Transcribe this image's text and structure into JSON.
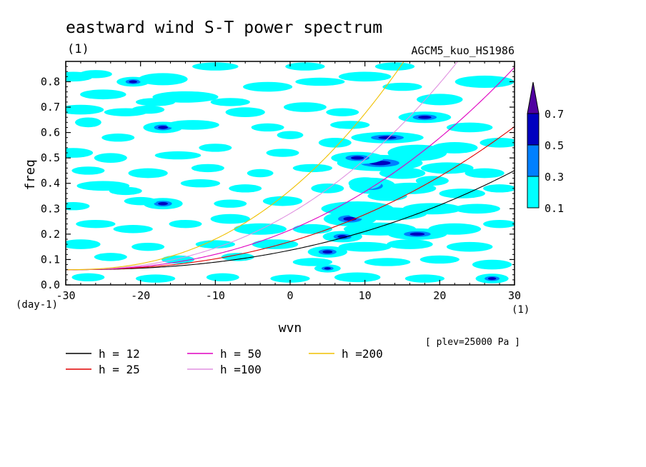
{
  "chart_data": {
    "type": "contour",
    "title": "eastward wind S-T power spectrum",
    "subtitle": "(1)",
    "model_label": "AGCM5_kuo_HS1986",
    "xlabel": "wvn",
    "ylabel": "freq",
    "x_unit": "(1)",
    "y_unit": "(day-1)",
    "xlim": [
      -30,
      30
    ],
    "ylim": [
      0,
      0.88
    ],
    "x_ticks": [
      "-30",
      "-20",
      "-10",
      "0",
      "10",
      "20",
      "30"
    ],
    "y_ticks": [
      "0.0",
      "0.1",
      "0.2",
      "0.3",
      "0.4",
      "0.5",
      "0.6",
      "0.7",
      "0.8"
    ],
    "plev_note": "[ plev=25000 Pa ]",
    "colorbar": {
      "levels": [
        "0.1",
        "0.3",
        "0.5",
        "0.7"
      ],
      "colors": [
        "#00ffff",
        "#0080ff",
        "#0000c0",
        "#5000a0"
      ]
    },
    "dispersion_curves": [
      {
        "label": "h = 12",
        "h": 12,
        "color": "#000000"
      },
      {
        "label": "h = 25",
        "h": 25,
        "color": "#e00000"
      },
      {
        "label": "h = 50",
        "h": 50,
        "color": "#e000c0"
      },
      {
        "label": "h =100",
        "h": 100,
        "color": "#e090e0"
      },
      {
        "label": "h =200",
        "h": 200,
        "color": "#f0c000"
      }
    ],
    "blobs": [
      [
        -29,
        0.82,
        1.2,
        0.012,
        1
      ],
      [
        -26,
        0.83,
        1.0,
        0.01,
        1
      ],
      [
        -21,
        0.8,
        1.0,
        0.012,
        2
      ],
      [
        -17,
        0.81,
        1.5,
        0.015,
        1
      ],
      [
        -25,
        0.75,
        1.4,
        0.012,
        1
      ],
      [
        -18,
        0.72,
        1.2,
        0.01,
        1
      ],
      [
        -14,
        0.74,
        2.0,
        0.014,
        1
      ],
      [
        -8,
        0.72,
        1.2,
        0.01,
        1
      ],
      [
        -3,
        0.78,
        1.5,
        0.012,
        1
      ],
      [
        4,
        0.8,
        1.5,
        0.01,
        1
      ],
      [
        10,
        0.82,
        1.6,
        0.012,
        1
      ],
      [
        15,
        0.78,
        1.2,
        0.01,
        1
      ],
      [
        -28,
        0.69,
        1.4,
        0.012,
        1
      ],
      [
        -22,
        0.68,
        1.3,
        0.01,
        1
      ],
      [
        -19,
        0.69,
        1.0,
        0.01,
        1
      ],
      [
        -6,
        0.68,
        1.2,
        0.012,
        1
      ],
      [
        2,
        0.7,
        1.3,
        0.012,
        1
      ],
      [
        7,
        0.68,
        1.0,
        0.01,
        1
      ],
      [
        20,
        0.73,
        1.4,
        0.014,
        1
      ],
      [
        26,
        0.8,
        1.8,
        0.015,
        1
      ],
      [
        -27,
        0.64,
        0.8,
        0.012,
        1
      ],
      [
        -17,
        0.62,
        1.2,
        0.014,
        2
      ],
      [
        -13,
        0.63,
        1.6,
        0.012,
        1
      ],
      [
        -3,
        0.62,
        1.0,
        0.01,
        1
      ],
      [
        8,
        0.63,
        1.2,
        0.01,
        1
      ],
      [
        18,
        0.66,
        1.6,
        0.014,
        2
      ],
      [
        24,
        0.62,
        1.4,
        0.012,
        1
      ],
      [
        13,
        0.58,
        2.2,
        0.014,
        2
      ],
      [
        -29,
        0.52,
        1.2,
        0.012,
        1
      ],
      [
        -24,
        0.5,
        1.0,
        0.012,
        1
      ],
      [
        -15,
        0.51,
        1.4,
        0.01,
        1
      ],
      [
        -10,
        0.54,
        1.0,
        0.01,
        1
      ],
      [
        -1,
        0.52,
        1.0,
        0.01,
        1
      ],
      [
        6,
        0.56,
        1.0,
        0.012,
        1
      ],
      [
        17,
        0.52,
        1.8,
        0.02,
        1
      ],
      [
        22,
        0.54,
        1.4,
        0.014,
        1
      ],
      [
        28,
        0.56,
        1.2,
        0.012,
        1
      ],
      [
        12,
        0.48,
        2.6,
        0.02,
        2
      ],
      [
        9,
        0.5,
        1.6,
        0.015,
        2
      ],
      [
        -19,
        0.44,
        1.2,
        0.012,
        1
      ],
      [
        -27,
        0.45,
        1.0,
        0.01,
        1
      ],
      [
        -11,
        0.46,
        1.0,
        0.01,
        1
      ],
      [
        -4,
        0.44,
        0.8,
        0.01,
        1
      ],
      [
        3,
        0.46,
        1.2,
        0.01,
        1
      ],
      [
        15,
        0.44,
        1.4,
        0.014,
        1
      ],
      [
        21,
        0.46,
        1.6,
        0.014,
        1
      ],
      [
        26,
        0.44,
        1.2,
        0.012,
        1
      ],
      [
        11,
        0.39,
        1.4,
        0.02,
        2
      ],
      [
        -25,
        0.39,
        1.6,
        0.012,
        1
      ],
      [
        -22,
        0.37,
        1.0,
        0.01,
        1
      ],
      [
        -12,
        0.4,
        1.2,
        0.01,
        1
      ],
      [
        -6,
        0.38,
        1.0,
        0.01,
        1
      ],
      [
        5,
        0.38,
        1.0,
        0.012,
        1
      ],
      [
        16,
        0.38,
        1.6,
        0.014,
        1
      ],
      [
        23,
        0.36,
        1.4,
        0.012,
        1
      ],
      [
        28,
        0.38,
        1.0,
        0.01,
        1
      ],
      [
        -29,
        0.31,
        1.0,
        0.01,
        1
      ],
      [
        -17,
        0.32,
        1.2,
        0.014,
        2
      ],
      [
        -20,
        0.33,
        1.0,
        0.01,
        1
      ],
      [
        -8,
        0.32,
        1.0,
        0.01,
        1
      ],
      [
        -1,
        0.33,
        1.2,
        0.012,
        1
      ],
      [
        9,
        0.3,
        2.2,
        0.018,
        1
      ],
      [
        8,
        0.26,
        1.6,
        0.018,
        2
      ],
      [
        13,
        0.28,
        2.4,
        0.016,
        1
      ],
      [
        19,
        0.3,
        1.8,
        0.014,
        1
      ],
      [
        25,
        0.3,
        1.4,
        0.012,
        1
      ],
      [
        -26,
        0.24,
        1.2,
        0.01,
        1
      ],
      [
        -21,
        0.22,
        1.2,
        0.01,
        1
      ],
      [
        -14,
        0.24,
        1.0,
        0.01,
        1
      ],
      [
        -4,
        0.22,
        1.6,
        0.014,
        1
      ],
      [
        3,
        0.22,
        1.2,
        0.012,
        1
      ],
      [
        12,
        0.22,
        2.2,
        0.016,
        1
      ],
      [
        17,
        0.2,
        1.8,
        0.014,
        2
      ],
      [
        22,
        0.22,
        1.6,
        0.014,
        1
      ],
      [
        28,
        0.24,
        1.0,
        0.01,
        1
      ],
      [
        7,
        0.19,
        1.2,
        0.014,
        2
      ],
      [
        -28,
        0.16,
        1.2,
        0.012,
        1
      ],
      [
        -19,
        0.15,
        1.0,
        0.01,
        1
      ],
      [
        -10,
        0.16,
        1.2,
        0.01,
        1
      ],
      [
        -2,
        0.16,
        1.4,
        0.012,
        1
      ],
      [
        5,
        0.13,
        1.2,
        0.014,
        2
      ],
      [
        10,
        0.15,
        1.6,
        0.012,
        1
      ],
      [
        16,
        0.16,
        1.4,
        0.012,
        1
      ],
      [
        24,
        0.15,
        1.4,
        0.012,
        1
      ],
      [
        -24,
        0.11,
        1.0,
        0.01,
        1
      ],
      [
        -15,
        0.1,
        1.0,
        0.01,
        1
      ],
      [
        -7,
        0.11,
        1.0,
        0.01,
        1
      ],
      [
        3,
        0.09,
        1.2,
        0.01,
        1
      ],
      [
        13,
        0.09,
        1.4,
        0.01,
        1
      ],
      [
        20,
        0.1,
        1.2,
        0.01,
        1
      ],
      [
        27,
        0.08,
        1.2,
        0.012,
        1
      ],
      [
        5,
        0.065,
        0.8,
        0.01,
        2
      ],
      [
        -27,
        0.03,
        1.0,
        0.01,
        1
      ],
      [
        -18,
        0.025,
        1.2,
        0.01,
        1
      ],
      [
        -9,
        0.03,
        1.0,
        0.01,
        1
      ],
      [
        0,
        0.025,
        1.2,
        0.01,
        1
      ],
      [
        9,
        0.03,
        1.4,
        0.012,
        1
      ],
      [
        18,
        0.025,
        1.2,
        0.01,
        1
      ],
      [
        27,
        0.025,
        1.0,
        0.012,
        2
      ],
      [
        14,
        0.86,
        1.2,
        0.01,
        1
      ],
      [
        -10,
        0.86,
        1.4,
        0.01,
        1
      ],
      [
        2,
        0.86,
        1.2,
        0.01,
        1
      ],
      [
        -23,
        0.58,
        1.0,
        0.01,
        1
      ],
      [
        0,
        0.59,
        0.8,
        0.01,
        1
      ],
      [
        -8,
        0.26,
        1.2,
        0.012,
        1
      ],
      [
        19,
        0.41,
        1.0,
        0.012,
        1
      ],
      [
        13,
        0.35,
        1.2,
        0.012,
        1
      ],
      [
        10,
        0.4,
        1.0,
        0.015,
        1
      ]
    ]
  }
}
